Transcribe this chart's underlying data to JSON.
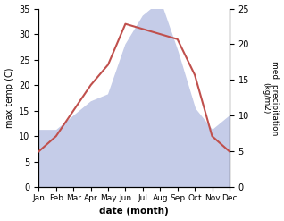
{
  "months": [
    "Jan",
    "Feb",
    "Mar",
    "Apr",
    "May",
    "Jun",
    "Jul",
    "Aug",
    "Sep",
    "Oct",
    "Nov",
    "Dec"
  ],
  "temp": [
    7,
    10,
    15,
    20,
    24,
    32,
    31,
    30,
    29,
    22,
    10,
    7
  ],
  "precip": [
    8,
    8,
    10,
    12,
    13,
    20,
    24,
    26,
    19,
    11,
    8,
    10
  ],
  "temp_color": "#c0504d",
  "precip_fill_color": "#c5cce8",
  "ylabel_left": "max temp (C)",
  "ylabel_right": "med. precipitation\n(kg/m2)",
  "xlabel": "date (month)",
  "ylim_left": [
    0,
    35
  ],
  "ylim_right": [
    0,
    25
  ],
  "yticks_left": [
    0,
    5,
    10,
    15,
    20,
    25,
    30,
    35
  ],
  "yticks_right": [
    0,
    5,
    10,
    15,
    20,
    25
  ]
}
